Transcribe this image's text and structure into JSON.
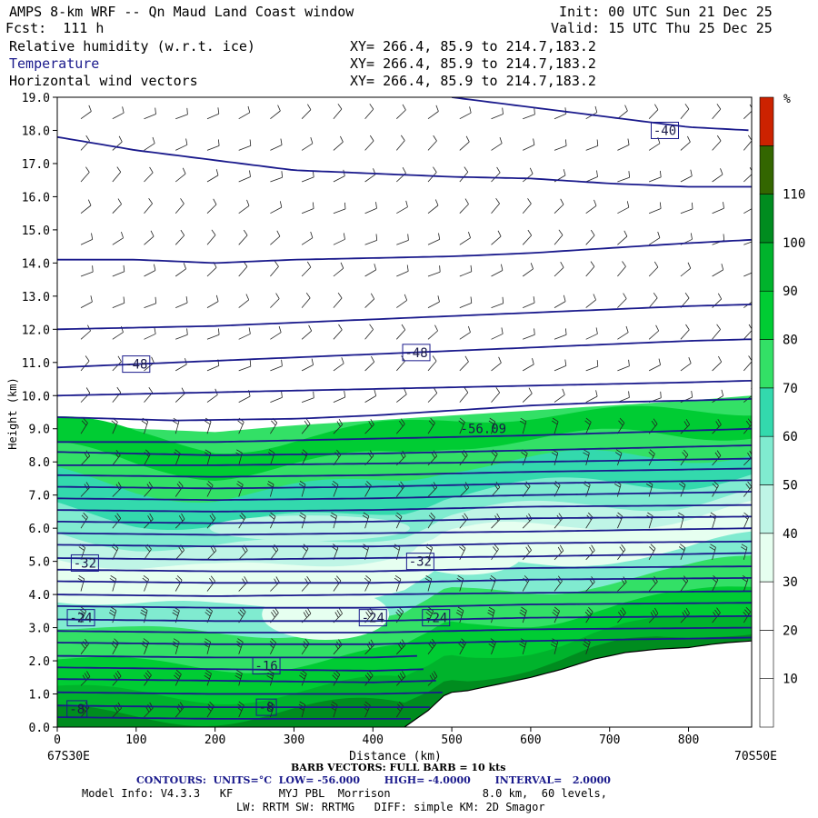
{
  "header": {
    "title": "AMPS 8-km WRF -- Qn Maud Land Coast window",
    "init": "Init: 00 UTC Sun 21 Dec 25",
    "fcst": "Fcst:  111 h",
    "valid": "Valid: 15 UTC Thu 25 Dec 25",
    "fields": [
      {
        "name": "Relative humidity (w.r.t. ice)",
        "xy": "XY= 266.4, 85.9 to 214.7,183.2"
      },
      {
        "name": "Temperature",
        "xy": "XY= 266.4, 85.9 to 214.7,183.2"
      },
      {
        "name": "Horizontal wind vectors",
        "xy": "XY= 266.4, 85.9 to 214.7,183.2"
      }
    ]
  },
  "footer": {
    "barb": "BARB VECTORS: FULL BARB = 10 kts",
    "contours": "CONTOURS:  UNITS=°C  LOW= -56.000       HIGH= -4.0000       INTERVAL=   2.0000",
    "model1": "Model Info: V4.3.3   KF       MYJ PBL  Morrison              8.0 km,  60 levels,",
    "model2": "LW: RRTM SW: RRTMG   DIFF: simple KM: 2D Smagor"
  },
  "colors": {
    "contour": "#1a1a8c",
    "bands": [
      "#ffffff",
      "#ffffff",
      "#ffffff",
      "#e6fff0",
      "#bff5e6",
      "#80ebd0",
      "#33d9ad",
      "#33e066",
      "#00cc33",
      "#00b32c",
      "#008c1f",
      "#336600",
      "#cc2200"
    ]
  },
  "chart_data": {
    "type": "heatmap",
    "xlabel": "Distance (km)",
    "ylabel": "Height (km)",
    "xlim": [
      0,
      880
    ],
    "ylim": [
      0.0,
      19.0
    ],
    "x_ticks": [
      0,
      100,
      200,
      300,
      400,
      500,
      600,
      700,
      800
    ],
    "y_ticks": [
      "0.0",
      "1.0",
      "2.0",
      "3.0",
      "4.0",
      "5.0",
      "6.0",
      "7.0",
      "8.0",
      "9.0",
      "10.0",
      "11.0",
      "12.0",
      "13.0",
      "14.0",
      "15.0",
      "16.0",
      "17.0",
      "18.0",
      "19.0"
    ],
    "left_end": "67S30E",
    "right_end": "70S50E",
    "colorbar": {
      "unit": "%",
      "ticks": [
        10,
        20,
        30,
        40,
        50,
        60,
        70,
        80,
        90,
        100,
        110
      ]
    },
    "terrain": [
      [
        0,
        0
      ],
      [
        440,
        0
      ],
      [
        470,
        0.5
      ],
      [
        490,
        0.95
      ],
      [
        500,
        1.05
      ],
      [
        520,
        1.1
      ],
      [
        560,
        1.3
      ],
      [
        600,
        1.5
      ],
      [
        640,
        1.75
      ],
      [
        680,
        2.05
      ],
      [
        720,
        2.25
      ],
      [
        760,
        2.35
      ],
      [
        800,
        2.4
      ],
      [
        830,
        2.5
      ],
      [
        850,
        2.55
      ],
      [
        880,
        2.6
      ]
    ],
    "rh_top": [
      [
        0,
        9.3
      ],
      [
        100,
        9.0
      ],
      [
        200,
        8.9
      ],
      [
        300,
        9.1
      ],
      [
        400,
        9.25
      ],
      [
        500,
        9.4
      ],
      [
        600,
        9.55
      ],
      [
        700,
        9.7
      ],
      [
        800,
        9.85
      ],
      [
        880,
        10.0
      ]
    ],
    "temperature_contours": [
      {
        "label": "-40",
        "points": [
          [
            0,
            17.8
          ],
          [
            100,
            17.4
          ],
          [
            200,
            17.1
          ],
          [
            300,
            16.8
          ],
          [
            400,
            16.7
          ],
          [
            500,
            16.6
          ],
          [
            600,
            16.55
          ],
          [
            700,
            16.4
          ],
          [
            800,
            16.3
          ],
          [
            880,
            16.3
          ]
        ]
      },
      {
        "label": "-40",
        "points": [
          [
            500,
            19.0
          ],
          [
            600,
            18.7
          ],
          [
            700,
            18.4
          ],
          [
            800,
            18.1
          ],
          [
            880,
            18.0
          ]
        ]
      },
      {
        "label": "",
        "points": [
          [
            0,
            14.1
          ],
          [
            100,
            14.1
          ],
          [
            200,
            14.0
          ],
          [
            300,
            14.1
          ],
          [
            400,
            14.15
          ],
          [
            500,
            14.2
          ],
          [
            600,
            14.3
          ],
          [
            700,
            14.45
          ],
          [
            800,
            14.6
          ],
          [
            880,
            14.7
          ]
        ]
      },
      {
        "label": "",
        "points": [
          [
            0,
            12.0
          ],
          [
            100,
            12.05
          ],
          [
            200,
            12.1
          ],
          [
            300,
            12.2
          ],
          [
            400,
            12.3
          ],
          [
            500,
            12.4
          ],
          [
            600,
            12.5
          ],
          [
            700,
            12.6
          ],
          [
            800,
            12.7
          ],
          [
            880,
            12.75
          ]
        ]
      },
      {
        "label": "-48",
        "points": [
          [
            0,
            10.85
          ],
          [
            100,
            10.95
          ],
          [
            200,
            11.05
          ],
          [
            300,
            11.15
          ],
          [
            400,
            11.25
          ],
          [
            500,
            11.35
          ],
          [
            600,
            11.45
          ],
          [
            700,
            11.55
          ],
          [
            800,
            11.65
          ],
          [
            880,
            11.7
          ]
        ]
      },
      {
        "label": "",
        "points": [
          [
            0,
            10.0
          ],
          [
            100,
            10.05
          ],
          [
            200,
            10.1
          ],
          [
            300,
            10.15
          ],
          [
            400,
            10.2
          ],
          [
            500,
            10.25
          ],
          [
            600,
            10.3
          ],
          [
            700,
            10.35
          ],
          [
            800,
            10.4
          ],
          [
            880,
            10.45
          ]
        ]
      },
      {
        "label": "-56.09",
        "points": [
          [
            0,
            9.35
          ],
          [
            150,
            9.25
          ],
          [
            300,
            9.3
          ],
          [
            400,
            9.4
          ],
          [
            500,
            9.55
          ],
          [
            600,
            9.7
          ],
          [
            700,
            9.8
          ],
          [
            800,
            9.85
          ],
          [
            880,
            9.9
          ]
        ]
      },
      {
        "label": "",
        "points": [
          [
            0,
            8.6
          ],
          [
            200,
            8.6
          ],
          [
            400,
            8.7
          ],
          [
            600,
            8.8
          ],
          [
            880,
            9.0
          ]
        ]
      },
      {
        "label": "",
        "points": [
          [
            0,
            8.3
          ],
          [
            200,
            8.2
          ],
          [
            400,
            8.25
          ],
          [
            600,
            8.35
          ],
          [
            880,
            8.5
          ]
        ]
      },
      {
        "label": "",
        "points": [
          [
            0,
            7.9
          ],
          [
            200,
            7.9
          ],
          [
            400,
            7.95
          ],
          [
            600,
            8.0
          ],
          [
            880,
            8.1
          ]
        ]
      },
      {
        "label": "",
        "points": [
          [
            0,
            7.6
          ],
          [
            200,
            7.55
          ],
          [
            400,
            7.6
          ],
          [
            600,
            7.7
          ],
          [
            880,
            7.8
          ]
        ]
      },
      {
        "label": "",
        "points": [
          [
            0,
            7.25
          ],
          [
            200,
            7.2
          ],
          [
            400,
            7.25
          ],
          [
            600,
            7.35
          ],
          [
            880,
            7.45
          ]
        ]
      },
      {
        "label": "",
        "points": [
          [
            0,
            6.9
          ],
          [
            200,
            6.85
          ],
          [
            400,
            6.9
          ],
          [
            600,
            7.0
          ],
          [
            880,
            7.1
          ]
        ]
      },
      {
        "label": "",
        "points": [
          [
            0,
            6.55
          ],
          [
            200,
            6.5
          ],
          [
            400,
            6.55
          ],
          [
            600,
            6.65
          ],
          [
            880,
            6.7
          ]
        ]
      },
      {
        "label": "",
        "points": [
          [
            0,
            6.2
          ],
          [
            200,
            6.15
          ],
          [
            400,
            6.2
          ],
          [
            600,
            6.3
          ],
          [
            880,
            6.35
          ]
        ]
      },
      {
        "label": "",
        "points": [
          [
            0,
            5.85
          ],
          [
            200,
            5.8
          ],
          [
            400,
            5.85
          ],
          [
            600,
            5.9
          ],
          [
            880,
            6.0
          ]
        ]
      },
      {
        "label": "",
        "points": [
          [
            0,
            5.5
          ],
          [
            200,
            5.45
          ],
          [
            400,
            5.45
          ],
          [
            600,
            5.55
          ],
          [
            880,
            5.6
          ]
        ]
      },
      {
        "label": "-32",
        "points": [
          [
            0,
            5.1
          ],
          [
            200,
            5.05
          ],
          [
            400,
            5.1
          ],
          [
            600,
            5.15
          ],
          [
            880,
            5.25
          ]
        ]
      },
      {
        "label": "",
        "points": [
          [
            0,
            4.75
          ],
          [
            200,
            4.7
          ],
          [
            400,
            4.7
          ],
          [
            600,
            4.8
          ],
          [
            880,
            4.85
          ]
        ]
      },
      {
        "label": "",
        "points": [
          [
            0,
            4.4
          ],
          [
            200,
            4.35
          ],
          [
            400,
            4.35
          ],
          [
            600,
            4.45
          ],
          [
            880,
            4.5
          ]
        ]
      },
      {
        "label": "",
        "points": [
          [
            0,
            4.0
          ],
          [
            200,
            3.95
          ],
          [
            400,
            4.0
          ],
          [
            600,
            4.05
          ],
          [
            880,
            4.1
          ]
        ]
      },
      {
        "label": "",
        "points": [
          [
            0,
            3.65
          ],
          [
            200,
            3.6
          ],
          [
            400,
            3.6
          ],
          [
            600,
            3.7
          ],
          [
            880,
            3.75
          ]
        ]
      },
      {
        "label": "-24",
        "points": [
          [
            0,
            3.25
          ],
          [
            200,
            3.2
          ],
          [
            400,
            3.2
          ],
          [
            600,
            3.3
          ],
          [
            880,
            3.35
          ]
        ]
      },
      {
        "label": "",
        "points": [
          [
            0,
            2.9
          ],
          [
            200,
            2.85
          ],
          [
            400,
            2.85
          ],
          [
            600,
            2.95
          ],
          [
            880,
            3.0
          ]
        ]
      },
      {
        "label": "",
        "points": [
          [
            0,
            2.55
          ],
          [
            200,
            2.5
          ],
          [
            400,
            2.5
          ],
          [
            600,
            2.6
          ],
          [
            880,
            2.7
          ]
        ]
      },
      {
        "label": "",
        "points": [
          [
            0,
            2.15
          ],
          [
            200,
            2.1
          ],
          [
            400,
            2.1
          ],
          [
            460,
            2.15
          ]
        ]
      },
      {
        "label": "-16",
        "points": [
          [
            0,
            1.8
          ],
          [
            200,
            1.75
          ],
          [
            400,
            1.7
          ],
          [
            470,
            1.75
          ]
        ]
      },
      {
        "label": "",
        "points": [
          [
            0,
            1.45
          ],
          [
            200,
            1.4
          ],
          [
            400,
            1.35
          ],
          [
            480,
            1.4
          ]
        ]
      },
      {
        "label": "",
        "points": [
          [
            0,
            1.05
          ],
          [
            200,
            1.0
          ],
          [
            400,
            1.0
          ],
          [
            495,
            1.05
          ]
        ]
      },
      {
        "label": "-8",
        "points": [
          [
            0,
            0.65
          ],
          [
            200,
            0.6
          ],
          [
            400,
            0.6
          ],
          [
            475,
            0.6
          ]
        ]
      },
      {
        "label": "",
        "points": [
          [
            0,
            0.3
          ],
          [
            200,
            0.25
          ],
          [
            400,
            0.25
          ],
          [
            455,
            0.25
          ]
        ]
      }
    ],
    "contour_labels": [
      {
        "text": "-40",
        "x": 770,
        "y": 18.0
      },
      {
        "text": "-48",
        "x": 100,
        "y": 10.95
      },
      {
        "text": "-48",
        "x": 455,
        "y": 11.3
      },
      {
        "text": "-56.09",
        "x": 540,
        "y": 9.0
      },
      {
        "text": "-32",
        "x": 35,
        "y": 4.95
      },
      {
        "text": "-32",
        "x": 460,
        "y": 5.0
      },
      {
        "text": "-24",
        "x": 30,
        "y": 3.3
      },
      {
        "text": "-24",
        "x": 400,
        "y": 3.3
      },
      {
        "text": "-24",
        "x": 480,
        "y": 3.3
      },
      {
        "text": "-16",
        "x": 265,
        "y": 1.85
      },
      {
        "text": "-8",
        "x": 25,
        "y": 0.55
      },
      {
        "text": "-8",
        "x": 265,
        "y": 0.6
      }
    ],
    "wind_barb_grid": {
      "x_spacing_km": 40,
      "y_spacing_km": 0.95,
      "x_start_km": 30,
      "y_start_km": 0.3
    }
  }
}
